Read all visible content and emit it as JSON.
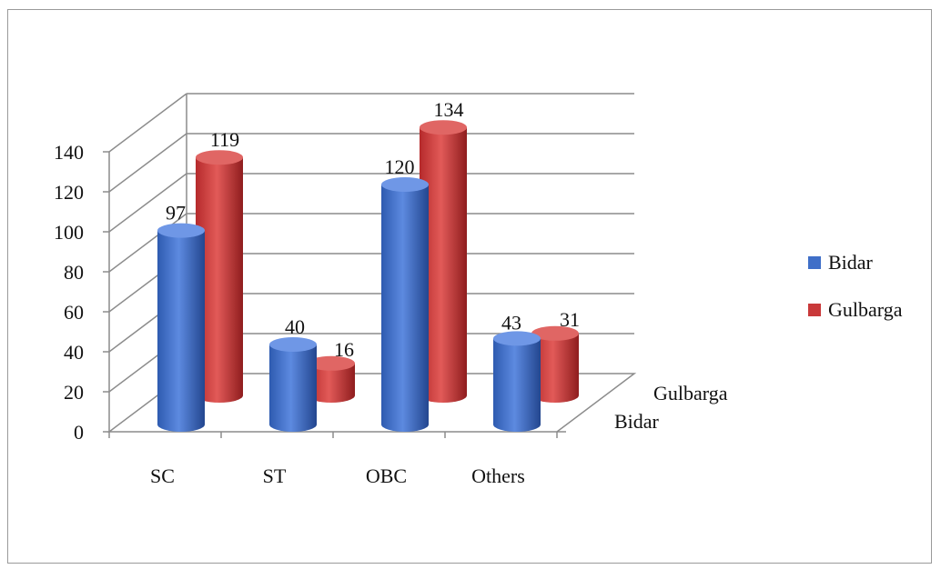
{
  "chart_data": {
    "type": "bar",
    "categories": [
      "SC",
      "ST",
      "OBC",
      "Others"
    ],
    "series": [
      {
        "name": "Bidar",
        "values": [
          97,
          40,
          120,
          43
        ],
        "color": "#3f6fc8"
      },
      {
        "name": "Gulbarga",
        "values": [
          119,
          16,
          134,
          31
        ],
        "color": "#c9393a"
      }
    ],
    "depth_labels": [
      "Gulbarga",
      "Bidar"
    ],
    "ylim": [
      0,
      140
    ],
    "yticks": [
      "0",
      "20",
      "40",
      "60",
      "80",
      "100",
      "120",
      "140"
    ],
    "grid": true,
    "legend_position": "right",
    "style": "3d-cylinder"
  }
}
